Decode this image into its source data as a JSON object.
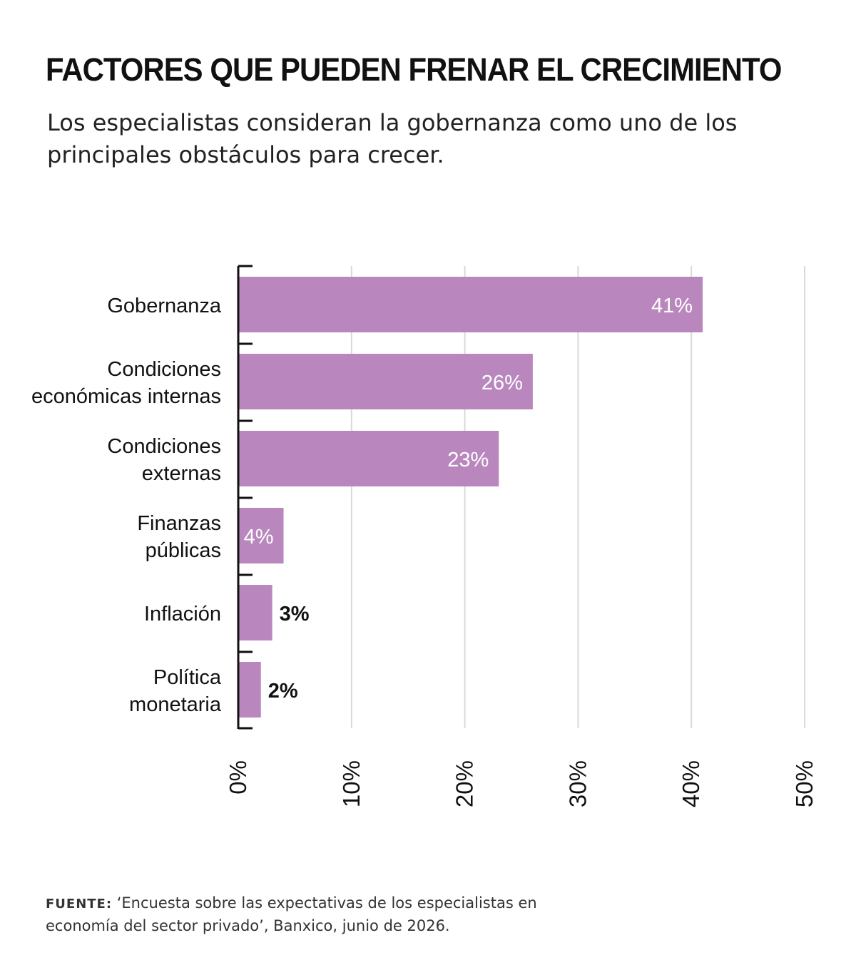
{
  "title": "FACTORES QUE PUEDEN FRENAR EL CRECIMIENTO",
  "subtitle": "Los especialistas consideran la gobernanza como uno de los principales obstáculos para crecer.",
  "source": {
    "label": "FUENTE:",
    "text": "‘Encuesta sobre las expectativas de los especialistas en economía del sector privado’, Banxico, junio de 2026."
  },
  "colors": {
    "bar": "#b987bd",
    "grid": "#d9d9d9",
    "axis": "#111111",
    "label_inside": "#ffffff",
    "label_outside": "#111111"
  },
  "chart_data": {
    "type": "bar",
    "orientation": "horizontal",
    "categories": [
      [
        "Gobernanza"
      ],
      [
        "Condiciones",
        "económicas internas"
      ],
      [
        "Condiciones",
        "externas"
      ],
      [
        "Finanzas",
        "públicas"
      ],
      [
        "Inflación"
      ],
      [
        "Política",
        "monetaria"
      ]
    ],
    "values": [
      41,
      26,
      23,
      4,
      3,
      2
    ],
    "value_labels": [
      "41%",
      "26%",
      "23%",
      "4%",
      "3%",
      "2%"
    ],
    "xlim": [
      0,
      50
    ],
    "ticks": [
      0,
      10,
      20,
      30,
      40,
      50
    ],
    "tick_labels": [
      "0%",
      "10%",
      "20%",
      "30%",
      "40%",
      "50%"
    ],
    "grid": true
  }
}
